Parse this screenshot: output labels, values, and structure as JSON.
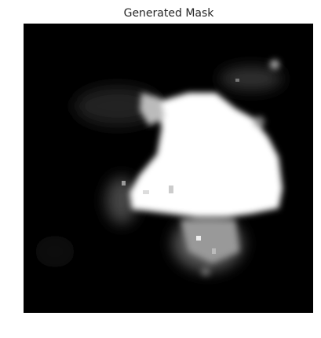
{
  "title": "Generated Mask"
}
